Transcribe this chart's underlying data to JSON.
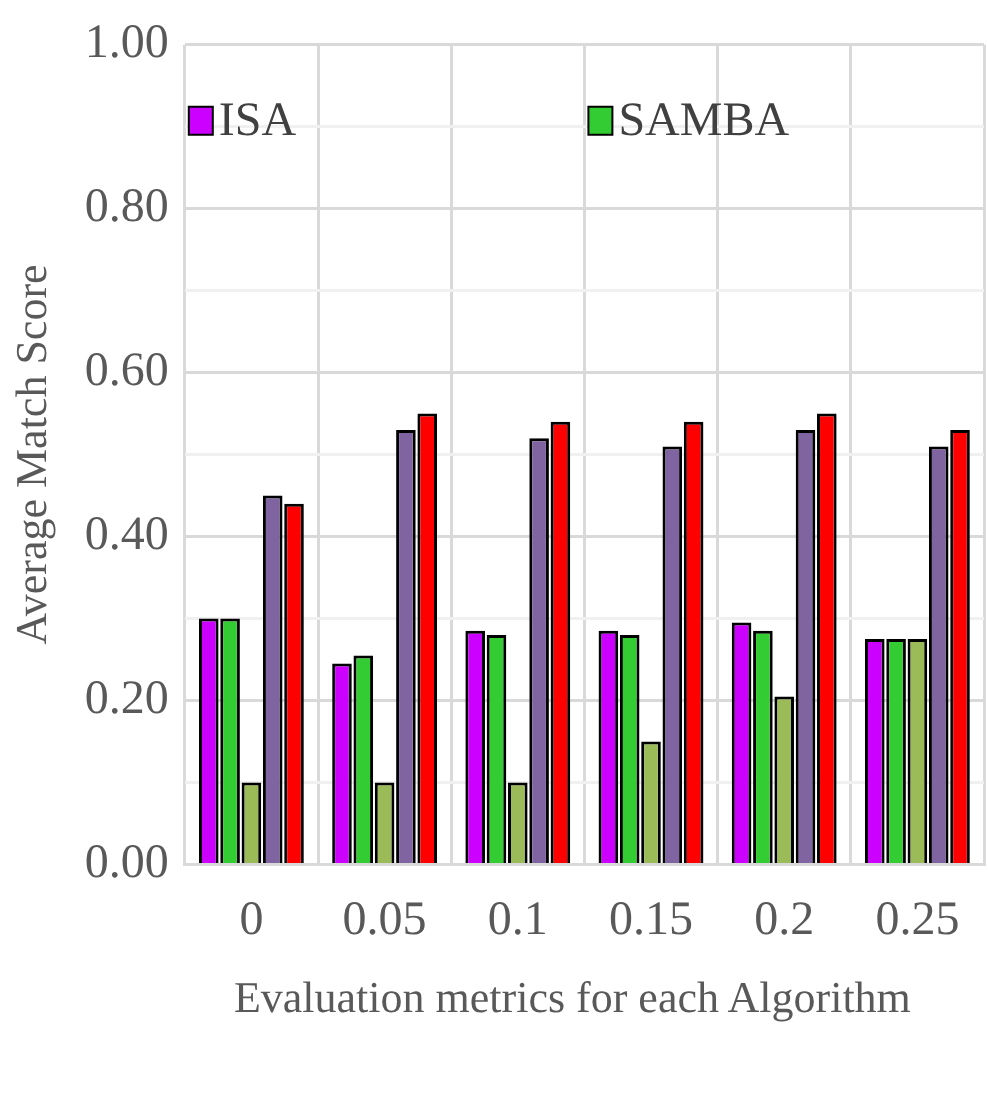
{
  "chart_data": {
    "type": "bar",
    "xlabel": "Evaluation metrics for each Algorithm",
    "ylabel": "Average Match Score",
    "categories": [
      "0",
      "0.05",
      "0.1",
      "0.15",
      "0.2",
      "0.25"
    ],
    "series": [
      {
        "name": "ISA",
        "color": "#cc00ff",
        "values": [
          0.3,
          0.245,
          0.285,
          0.285,
          0.295,
          0.275
        ]
      },
      {
        "name": "SAMBA",
        "color": "#33cc33",
        "values": [
          0.3,
          0.255,
          0.28,
          0.28,
          0.285,
          0.275
        ]
      },
      {
        "color": "#9bbb59",
        "values": [
          0.1,
          0.1,
          0.1,
          0.15,
          0.205,
          0.275
        ]
      },
      {
        "color": "#8064a2",
        "values": [
          0.45,
          0.53,
          0.52,
          0.51,
          0.53,
          0.51
        ]
      },
      {
        "color": "#ff0000",
        "values": [
          0.44,
          0.55,
          0.54,
          0.54,
          0.55,
          0.53
        ]
      }
    ],
    "ylim": [
      0,
      1
    ],
    "yticks": [
      {
        "value": 0,
        "label": "0.00"
      },
      {
        "value": 0.2,
        "label": "0.20"
      },
      {
        "value": 0.4,
        "label": "0.40"
      },
      {
        "value": 0.6,
        "label": "0.60"
      },
      {
        "value": 0.8,
        "label": "0.80"
      },
      {
        "value": 1,
        "label": "1.00"
      }
    ],
    "grid": true,
    "legend": "top left"
  }
}
